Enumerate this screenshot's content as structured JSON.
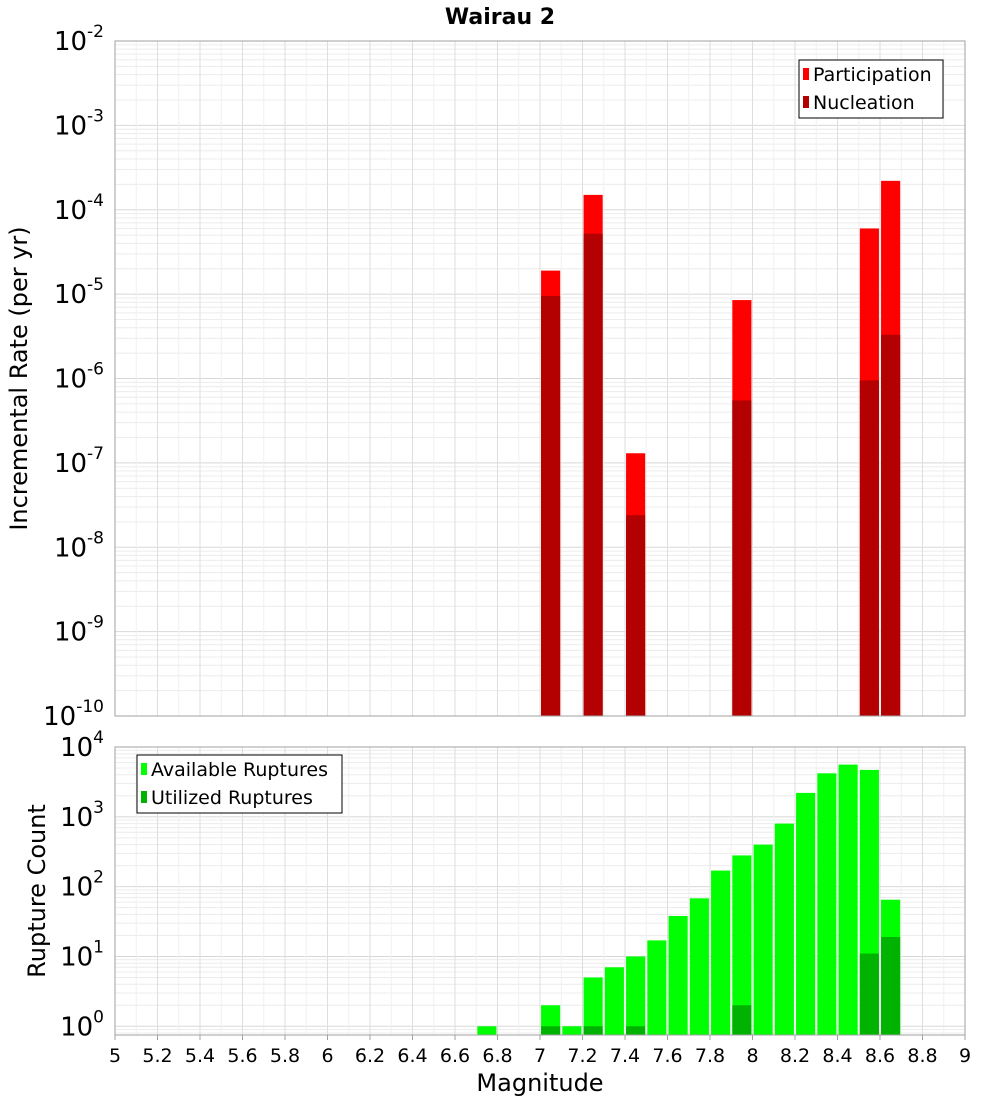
{
  "title": "Wairau 2",
  "chart_data": [
    {
      "type": "bar",
      "name": "top",
      "ylabel": "Incremental Rate (per yr)",
      "xlabel": "",
      "yscale": "log",
      "ylim": [
        1e-10,
        0.01
      ],
      "xlim": [
        5,
        9
      ],
      "ytick_exponents": [
        -10,
        -9,
        -8,
        -7,
        -6,
        -5,
        -4,
        -3,
        -2
      ],
      "grid": true,
      "legend": {
        "position": "top-right",
        "entries": [
          {
            "label": "Participation",
            "color": "#ff0000"
          },
          {
            "label": "Nucleation",
            "color": "#b30000"
          }
        ]
      },
      "series": [
        {
          "name": "Participation",
          "color": "#ff0000",
          "points": [
            [
              7.05,
              1.9e-05
            ],
            [
              7.25,
              0.00015
            ],
            [
              7.45,
              1.3e-07
            ],
            [
              7.95,
              8.5e-06
            ],
            [
              8.55,
              6e-05
            ],
            [
              8.65,
              0.00022
            ]
          ]
        },
        {
          "name": "Nucleation",
          "color": "#b30000",
          "points": [
            [
              7.05,
              9.5e-06
            ],
            [
              7.25,
              5.2e-05
            ],
            [
              7.45,
              2.4e-08
            ],
            [
              7.95,
              5.5e-07
            ],
            [
              8.55,
              9.5e-07
            ],
            [
              8.65,
              3.3e-06
            ]
          ]
        }
      ]
    },
    {
      "type": "bar",
      "name": "bottom",
      "ylabel": "Rupture Count",
      "xlabel": "Magnitude",
      "yscale": "log",
      "ylim": [
        0.75,
        10000
      ],
      "xlim": [
        5,
        9
      ],
      "ytick_exponents": [
        0,
        1,
        2,
        3,
        4
      ],
      "xticks": [
        "5",
        "5.2",
        "5.4",
        "5.6",
        "5.8",
        "6",
        "6.2",
        "6.4",
        "6.6",
        "6.8",
        "7",
        "7.2",
        "7.4",
        "7.6",
        "7.8",
        "8",
        "8.2",
        "8.4",
        "8.6",
        "8.8",
        "9"
      ],
      "grid": true,
      "legend": {
        "position": "top-left",
        "entries": [
          {
            "label": "Available Ruptures",
            "color": "#00ff00"
          },
          {
            "label": "Utilized Ruptures",
            "color": "#00b300"
          }
        ]
      },
      "series": [
        {
          "name": "Available Ruptures",
          "color": "#00ff00",
          "points": [
            [
              6.75,
              1
            ],
            [
              7.05,
              2
            ],
            [
              7.15,
              1
            ],
            [
              7.25,
              5
            ],
            [
              7.35,
              7
            ],
            [
              7.45,
              10
            ],
            [
              7.55,
              17
            ],
            [
              7.65,
              38
            ],
            [
              7.75,
              68
            ],
            [
              7.85,
              170
            ],
            [
              7.95,
              280
            ],
            [
              8.05,
              400
            ],
            [
              8.15,
              800
            ],
            [
              8.25,
              2200
            ],
            [
              8.35,
              4200
            ],
            [
              8.45,
              5600
            ],
            [
              8.55,
              4700
            ],
            [
              8.65,
              65
            ]
          ]
        },
        {
          "name": "Utilized Ruptures",
          "color": "#00b300",
          "points": [
            [
              7.05,
              1
            ],
            [
              7.25,
              1
            ],
            [
              7.45,
              1
            ],
            [
              7.95,
              2
            ],
            [
              8.55,
              11
            ],
            [
              8.65,
              19
            ]
          ]
        }
      ]
    }
  ]
}
